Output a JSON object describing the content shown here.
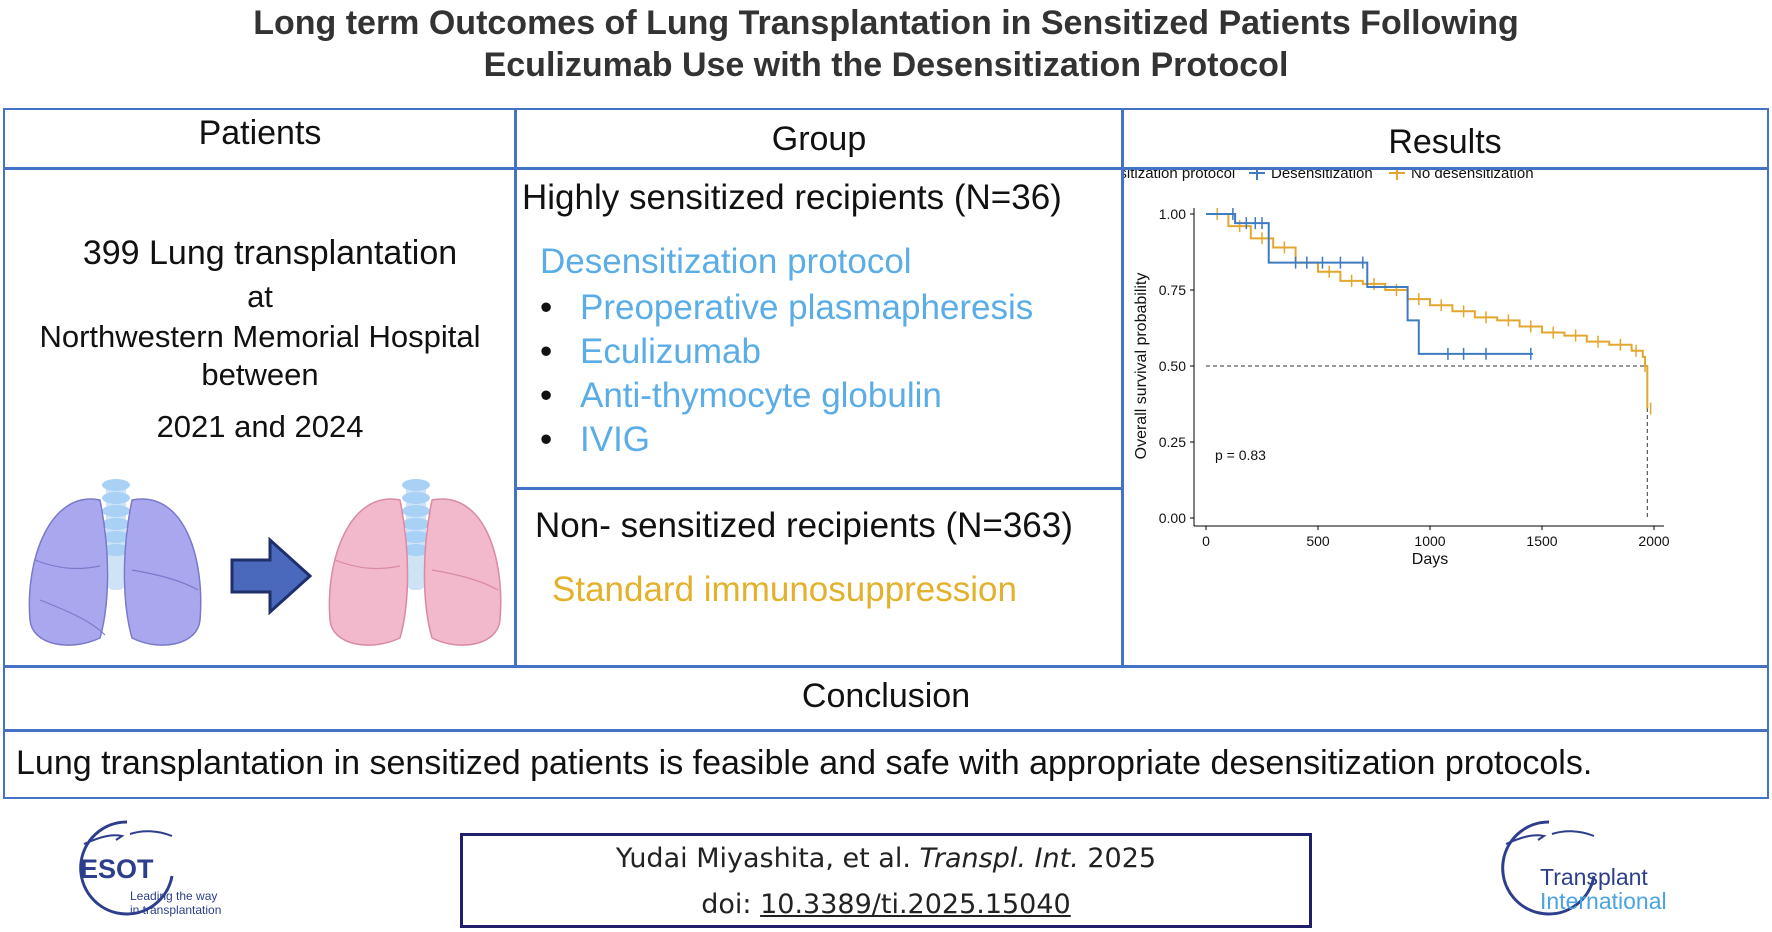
{
  "title": {
    "line1": "Long term Outcomes of Lung Transplantation in Sensitized Patients Following",
    "line2": "Eculizumab Use with the Desensitization Protocol"
  },
  "patients": {
    "header": "Patients",
    "line1": "399 Lung transplantation",
    "line2": "at",
    "line3": "Northwestern Memorial Hospital",
    "line4": "between",
    "line5": "2021 and 2024"
  },
  "group": {
    "header": "Group",
    "sensitized_title": "Highly sensitized recipients (N=36)",
    "protocol_title": "Desensitization protocol",
    "protocol_items": [
      "Preoperative plasmapheresis",
      "Eculizumab",
      "Anti-thymocyte globulin",
      "IVIG"
    ],
    "non_title": "Non- sensitized recipients (N=363)",
    "standard": "Standard immunosuppression"
  },
  "results": {
    "header": "Results"
  },
  "chart_data": {
    "type": "line",
    "xlabel": "Days",
    "ylabel": "Overall survival probability",
    "xlim": [
      0,
      2000
    ],
    "ylim": [
      0,
      1
    ],
    "xticks": [
      0,
      500,
      1000,
      1500,
      2000
    ],
    "yticks": [
      "0.00",
      "0.25",
      "0.50",
      "0.75",
      "1.00"
    ],
    "legend_title": "Desensitization protocol",
    "legend_position": "top",
    "annotation": "p = 0.83",
    "median_line": 0.5,
    "series": [
      {
        "name": "Desensitization",
        "color": "#3f7bbf",
        "x": [
          0,
          130,
          130,
          280,
          280,
          370,
          370,
          720,
          720,
          900,
          900,
          950,
          950,
          1460
        ],
        "y": [
          1.0,
          1.0,
          0.97,
          0.97,
          0.84,
          0.84,
          0.84,
          0.84,
          0.76,
          0.76,
          0.65,
          0.65,
          0.54,
          0.54
        ],
        "censor_x": [
          120,
          180,
          220,
          250,
          400,
          450,
          520,
          600,
          700,
          1080,
          1150,
          1250,
          1450
        ]
      },
      {
        "name": "No desensitization",
        "color": "#e3a72f",
        "x": [
          0,
          100,
          200,
          300,
          400,
          500,
          600,
          700,
          800,
          900,
          1000,
          1100,
          1200,
          1300,
          1400,
          1500,
          1600,
          1700,
          1800,
          1900,
          1950,
          1960,
          1970
        ],
        "y": [
          1.0,
          0.96,
          0.92,
          0.89,
          0.84,
          0.81,
          0.78,
          0.77,
          0.75,
          0.72,
          0.7,
          0.68,
          0.66,
          0.65,
          0.63,
          0.61,
          0.6,
          0.58,
          0.57,
          0.55,
          0.53,
          0.5,
          0.36
        ],
        "censor_x": [
          50,
          150,
          250,
          350,
          450,
          550,
          650,
          750,
          850,
          950,
          1050,
          1150,
          1250,
          1350,
          1450,
          1550,
          1650,
          1750,
          1850,
          1920,
          1960,
          1985
        ]
      }
    ]
  },
  "conclusion": {
    "header": "Conclusion",
    "text": "Lung transplantation in sensitized patients is feasible and safe with appropriate desensitization protocols."
  },
  "citation": {
    "authors": "Yudai Miyashita, et al. ",
    "journal": "Transpl. Int.",
    "year": " 2025",
    "doi_prefix": "doi: ",
    "doi": "10.3389/ti.2025.15040"
  },
  "logos": {
    "esot_name": "ESOT",
    "esot_tagline1": "Leading the way",
    "esot_tagline2": "in transplantation",
    "ti_line1": "Transplant",
    "ti_line2": "International"
  },
  "colors": {
    "border": "#4472c4",
    "protocol": "#5aade6",
    "standard": "#e3b12c"
  }
}
